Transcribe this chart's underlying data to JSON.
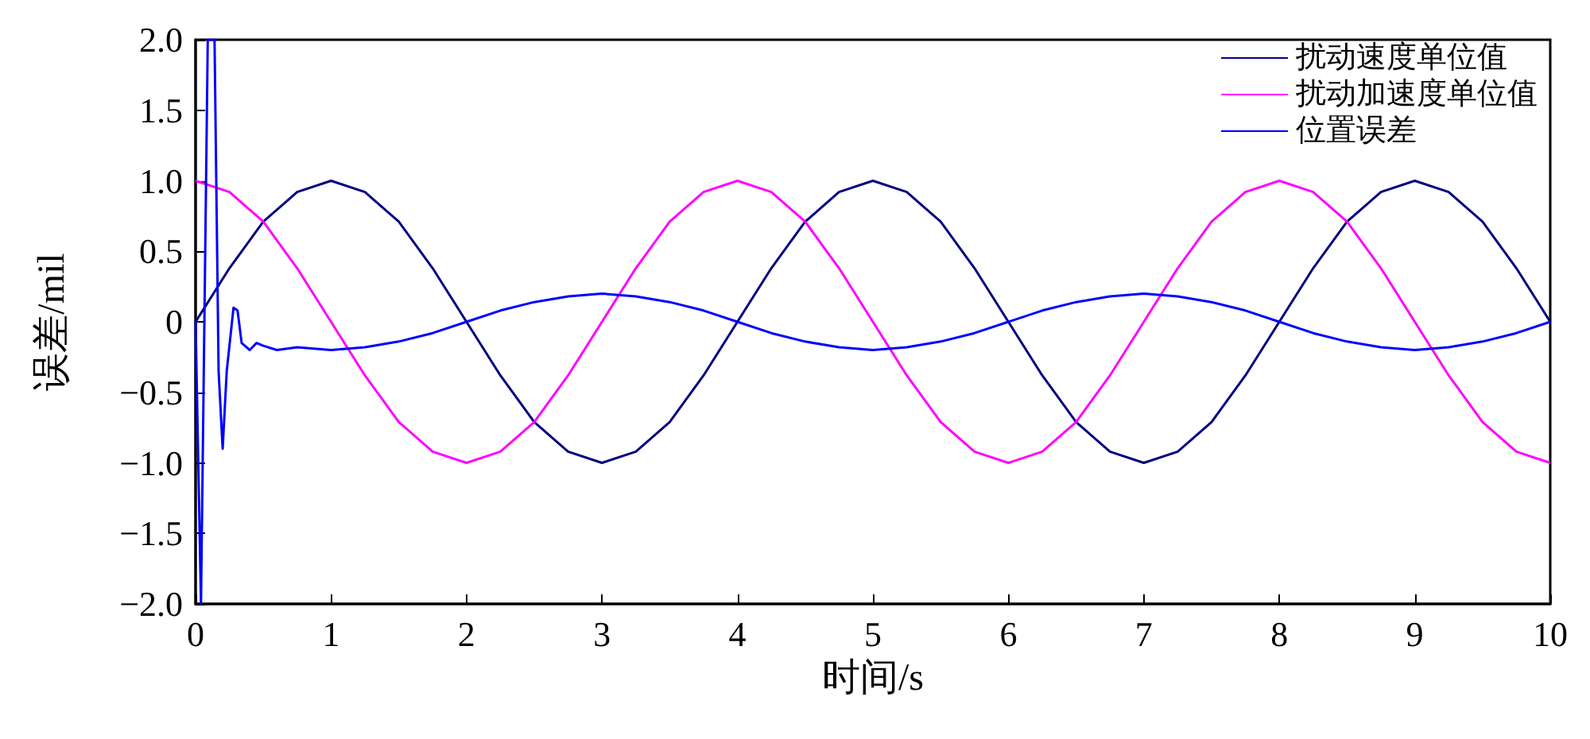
{
  "chart_data": {
    "type": "line",
    "xlabel": "时间/s",
    "ylabel": "误差/mil",
    "x": [
      0,
      0.25,
      0.5,
      0.75,
      1,
      1.25,
      1.5,
      1.75,
      2,
      2.25,
      2.5,
      2.75,
      3,
      3.25,
      3.5,
      3.75,
      4,
      4.25,
      4.5,
      4.75,
      5,
      5.25,
      5.5,
      5.75,
      6,
      6.25,
      6.5,
      6.75,
      7,
      7.25,
      7.5,
      7.75,
      8,
      8.25,
      8.5,
      8.75,
      9,
      9.25,
      9.5,
      9.75,
      10
    ],
    "series": [
      {
        "name": "扰动速度单位值",
        "color": "#000080",
        "values": [
          0,
          0.38,
          0.71,
          0.92,
          1,
          0.92,
          0.71,
          0.38,
          0,
          -0.38,
          -0.71,
          -0.92,
          -1,
          -0.92,
          -0.71,
          -0.38,
          0,
          0.38,
          0.71,
          0.92,
          1,
          0.92,
          0.71,
          0.38,
          0,
          -0.38,
          -0.71,
          -0.92,
          -1,
          -0.92,
          -0.71,
          -0.38,
          0,
          0.38,
          0.71,
          0.92,
          1,
          0.92,
          0.71,
          0.38,
          0
        ]
      },
      {
        "name": "扰动加速度单位值",
        "color": "#ff00ff",
        "values": [
          1,
          0.92,
          0.71,
          0.38,
          0,
          -0.38,
          -0.71,
          -0.92,
          -1,
          -0.92,
          -0.71,
          -0.38,
          0,
          0.38,
          0.71,
          0.92,
          1,
          0.92,
          0.71,
          0.38,
          0,
          -0.38,
          -0.71,
          -0.92,
          -1,
          -0.92,
          -0.71,
          -0.38,
          0,
          0.38,
          0.71,
          0.92,
          1,
          0.92,
          0.71,
          0.38,
          0,
          -0.38,
          -0.71,
          -0.92,
          -1
        ]
      },
      {
        "name": "位置误差",
        "color": "#0000ff",
        "x": [
          0,
          0.04,
          0.09,
          0.14,
          0.17,
          0.2,
          0.23,
          0.28,
          0.31,
          0.34,
          0.4,
          0.45,
          0.5,
          0.6,
          0.75,
          1,
          1.25,
          1.5,
          1.75,
          2,
          2.25,
          2.5,
          2.75,
          3,
          3.25,
          3.5,
          3.75,
          4,
          4.25,
          4.5,
          4.75,
          5,
          5.25,
          5.5,
          5.75,
          6,
          6.25,
          6.5,
          6.75,
          7,
          7.25,
          7.5,
          7.75,
          8,
          8.25,
          8.5,
          8.75,
          9,
          9.25,
          9.5,
          9.75,
          10
        ],
        "values": [
          0,
          -2,
          2,
          2,
          -0.35,
          -0.9,
          -0.35,
          0.1,
          0.08,
          -0.15,
          -0.2,
          -0.15,
          -0.17,
          -0.2,
          -0.18,
          -0.2,
          -0.18,
          -0.14,
          -0.08,
          0,
          0.08,
          0.14,
          0.18,
          0.2,
          0.18,
          0.14,
          0.08,
          0,
          -0.08,
          -0.14,
          -0.18,
          -0.2,
          -0.18,
          -0.14,
          -0.08,
          0,
          0.08,
          0.14,
          0.18,
          0.2,
          0.18,
          0.14,
          0.08,
          0,
          -0.08,
          -0.14,
          -0.18,
          -0.2,
          -0.18,
          -0.14,
          -0.08,
          0
        ]
      }
    ],
    "xlim": [
      0,
      10
    ],
    "xticks": [
      0,
      1,
      2,
      3,
      4,
      5,
      6,
      7,
      8,
      9,
      10
    ],
    "ylim": [
      -2,
      2
    ],
    "yticks": [
      {
        "value": -2,
        "label": "−2.0"
      },
      {
        "value": -1.5,
        "label": "−1.5"
      },
      {
        "value": -1,
        "label": "−1.0"
      },
      {
        "value": -0.5,
        "label": "−0.5"
      },
      {
        "value": 0,
        "label": "0"
      },
      {
        "value": 0.5,
        "label": "0.5"
      },
      {
        "value": 1,
        "label": "1.0"
      },
      {
        "value": 1.5,
        "label": "1.5"
      },
      {
        "value": 2,
        "label": "2.0"
      }
    ],
    "legend": "top right",
    "marker": "none"
  }
}
